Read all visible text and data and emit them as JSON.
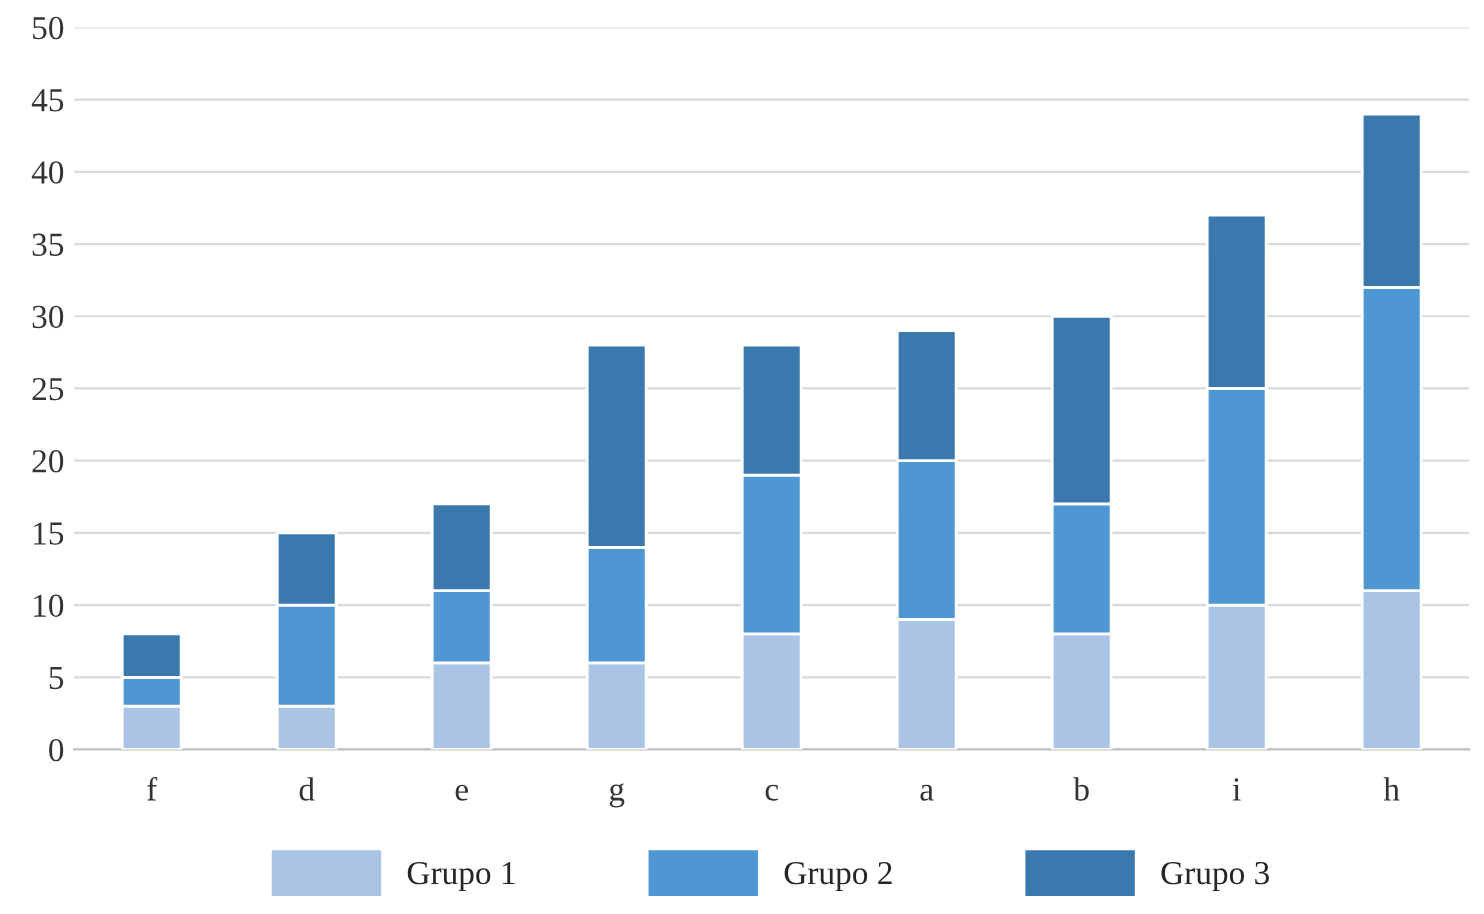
{
  "chart_data": {
    "type": "bar",
    "stacked": true,
    "categories": [
      "f",
      "d",
      "e",
      "g",
      "c",
      "a",
      "b",
      "i",
      "h"
    ],
    "series": [
      {
        "name": "Grupo 1",
        "color": "#a9c4e4",
        "values": [
          3,
          3,
          6,
          6,
          8,
          9,
          8,
          10,
          11
        ]
      },
      {
        "name": "Grupo 2",
        "color": "#4f97d3",
        "values": [
          2,
          7,
          5,
          8,
          11,
          11,
          9,
          15,
          21
        ]
      },
      {
        "name": "Grupo 3",
        "color": "#3a78ad",
        "values": [
          3,
          5,
          6,
          14,
          9,
          9,
          13,
          12,
          12
        ]
      }
    ],
    "ylim": [
      0,
      50
    ],
    "yticks": [
      0,
      5,
      10,
      15,
      20,
      25,
      30,
      35,
      40,
      45,
      50
    ],
    "grid": "y",
    "legend": "bottom"
  }
}
